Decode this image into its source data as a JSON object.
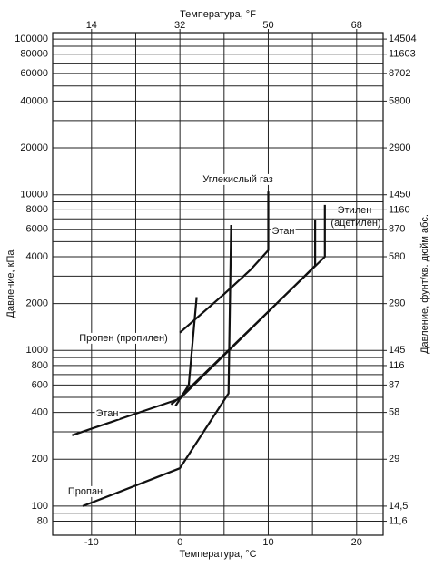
{
  "chart_data": {
    "type": "line",
    "x_label_top": "Температура, °F",
    "x_label": "Температура, °C",
    "y_label": "Давление, кПа",
    "y2_label": "Давление, фунт/кв. дюйм абс.",
    "xlim": [
      -14.4,
      23
    ],
    "xticks": [
      -10,
      0,
      10,
      20
    ],
    "x_minor_grid": [
      -5,
      5,
      15
    ],
    "x2lim": [
      6.08,
      73.4
    ],
    "x2ticks": [
      14,
      32,
      50,
      68
    ],
    "ylim": [
      65,
      110000
    ],
    "y_log": true,
    "yticks": [
      100000,
      80000,
      60000,
      40000,
      20000,
      10000,
      8000,
      6000,
      4000,
      2000,
      1000,
      800,
      600,
      400,
      200,
      100,
      80
    ],
    "y_minor_grid": [
      90000,
      70000,
      50000,
      30000,
      9000,
      7000,
      5000,
      3000,
      900,
      700,
      500,
      300,
      90
    ],
    "y2lim": [
      9.4276,
      15954.4
    ],
    "y2ticks": [
      14504,
      11603,
      8702,
      5800,
      2900,
      1450,
      1160,
      870,
      580,
      290,
      145,
      116,
      87,
      58,
      29,
      {
        "value": 14.5,
        "label": "14,5"
      },
      {
        "value": 11.6,
        "label": "11,6"
      }
    ],
    "grid": true,
    "series": [
      {
        "name": "Углекислый газ",
        "color": "#111111",
        "x": [
          0,
          5,
          8,
          10,
          10
        ],
        "values": [
          1300,
          2300,
          3300,
          4400,
          10500
        ]
      },
      {
        "name": "Этилен (ацетилен)",
        "color": "#111111",
        "x": [
          -1,
          0,
          16.4,
          16.4
        ],
        "values": [
          450,
          500,
          4000,
          8600
        ]
      },
      {
        "name": "Этан",
        "color": "#111111",
        "x": [
          -12.2,
          0,
          15.3,
          15.3
        ],
        "values": [
          285,
          490,
          3500,
          6900
        ]
      },
      {
        "name": "Пропен (пропилен)",
        "color": "#111111",
        "x": [
          -0.5,
          1,
          1.9
        ],
        "values": [
          440,
          600,
          2200
        ]
      },
      {
        "name": "Пропан",
        "color": "#111111",
        "x": [
          -11,
          0,
          5.5,
          5.8
        ],
        "values": [
          100,
          175,
          530,
          6400
        ]
      }
    ]
  }
}
